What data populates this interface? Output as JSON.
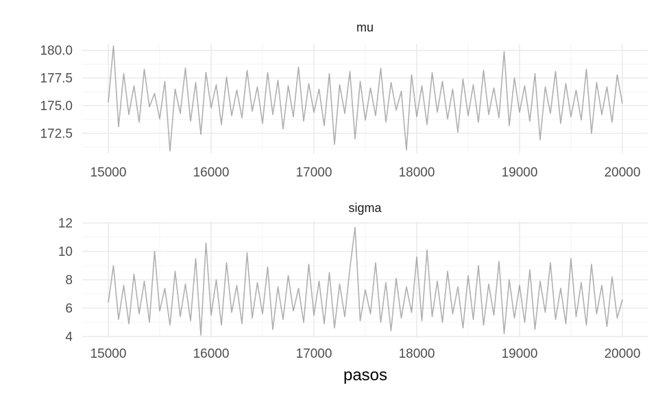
{
  "colors": {
    "background": "#ffffff",
    "trace": "#7f7f7f",
    "grid": "#ebebeb",
    "text": "#4d4d4d"
  },
  "chart_data": {
    "type": "line",
    "xlabel": "pasos",
    "grid": true,
    "legend": "none",
    "x_range": [
      15000,
      20000
    ],
    "x_ticks": [
      15000,
      16000,
      17000,
      18000,
      19000,
      20000
    ],
    "x_tick_labels": [
      "15000",
      "16000",
      "17000",
      "18000",
      "19000",
      "20000"
    ],
    "panels": [
      {
        "title": "mu",
        "ylim": [
          170.7,
          180.6
        ],
        "y_ticks": [
          172.5,
          175.0,
          177.5,
          180.0
        ],
        "y_tick_labels": [
          "172.5",
          "175.0",
          "177.5",
          "180.0"
        ],
        "series": {
          "x": [
            15000,
            15050,
            15100,
            15150,
            15200,
            15250,
            15300,
            15350,
            15400,
            15450,
            15500,
            15550,
            15600,
            15650,
            15700,
            15750,
            15800,
            15850,
            15900,
            15950,
            16000,
            16050,
            16100,
            16150,
            16200,
            16250,
            16300,
            16350,
            16400,
            16450,
            16500,
            16550,
            16600,
            16650,
            16700,
            16750,
            16800,
            16850,
            16900,
            16950,
            17000,
            17050,
            17100,
            17150,
            17200,
            17250,
            17300,
            17350,
            17400,
            17450,
            17500,
            17550,
            17600,
            17650,
            17700,
            17750,
            17800,
            17850,
            17900,
            17950,
            18000,
            18050,
            18100,
            18150,
            18200,
            18250,
            18300,
            18350,
            18400,
            18450,
            18500,
            18550,
            18600,
            18650,
            18700,
            18750,
            18800,
            18850,
            18900,
            18950,
            19000,
            19050,
            19100,
            19150,
            19200,
            19250,
            19300,
            19350,
            19400,
            19450,
            19500,
            19550,
            19600,
            19650,
            19700,
            19750,
            19800,
            19850,
            19900,
            19950,
            20000
          ],
          "y": [
            175.3,
            180.4,
            173.1,
            177.9,
            174.2,
            176.8,
            173.5,
            178.3,
            174.9,
            176.1,
            173.8,
            177.2,
            170.9,
            176.5,
            174.3,
            178.4,
            173.6,
            177.1,
            172.4,
            178.0,
            174.8,
            176.9,
            173.3,
            177.6,
            174.1,
            176.4,
            173.9,
            178.2,
            174.5,
            176.7,
            173.4,
            178.0,
            174.2,
            177.3,
            172.9,
            176.8,
            174.0,
            178.5,
            173.6,
            177.0,
            174.4,
            176.5,
            173.2,
            177.9,
            171.5,
            176.9,
            174.3,
            178.1,
            172.0,
            177.2,
            173.7,
            176.6,
            174.1,
            178.4,
            173.5,
            177.1,
            174.6,
            176.3,
            171.0,
            177.8,
            174.0,
            176.8,
            173.3,
            178.0,
            174.4,
            177.2,
            173.8,
            176.5,
            172.6,
            177.4,
            174.1,
            176.9,
            173.5,
            178.2,
            174.2,
            176.6,
            173.9,
            179.9,
            173.2,
            177.5,
            174.4,
            176.8,
            173.6,
            177.9,
            171.9,
            176.7,
            174.3,
            178.1,
            173.4,
            177.0,
            174.0,
            176.4,
            173.7,
            178.3,
            172.5,
            177.1,
            174.2,
            176.7,
            173.5,
            177.8,
            175.2
          ]
        }
      },
      {
        "title": "sigma",
        "ylim": [
          3.9,
          12.1
        ],
        "y_ticks": [
          4,
          6,
          8,
          10,
          12
        ],
        "y_tick_labels": [
          "4",
          "6",
          "8",
          "10",
          "12"
        ],
        "series": {
          "x": [
            15000,
            15050,
            15100,
            15150,
            15200,
            15250,
            15300,
            15350,
            15400,
            15450,
            15500,
            15550,
            15600,
            15650,
            15700,
            15750,
            15800,
            15850,
            15900,
            15950,
            16000,
            16050,
            16100,
            16150,
            16200,
            16250,
            16300,
            16350,
            16400,
            16450,
            16500,
            16550,
            16600,
            16650,
            16700,
            16750,
            16800,
            16850,
            16900,
            16950,
            17000,
            17050,
            17100,
            17150,
            17200,
            17250,
            17300,
            17350,
            17400,
            17450,
            17500,
            17550,
            17600,
            17650,
            17700,
            17750,
            17800,
            17850,
            17900,
            17950,
            18000,
            18050,
            18100,
            18150,
            18200,
            18250,
            18300,
            18350,
            18400,
            18450,
            18500,
            18550,
            18600,
            18650,
            18700,
            18750,
            18800,
            18850,
            18900,
            18950,
            19000,
            19050,
            19100,
            19150,
            19200,
            19250,
            19300,
            19350,
            19400,
            19450,
            19500,
            19550,
            19600,
            19650,
            19700,
            19750,
            19800,
            19850,
            19900,
            19950,
            20000
          ],
          "y": [
            6.4,
            9.0,
            5.2,
            7.6,
            4.9,
            8.4,
            5.6,
            7.9,
            5.0,
            10.0,
            5.8,
            7.4,
            4.8,
            8.6,
            5.4,
            7.7,
            5.1,
            9.5,
            4.1,
            10.6,
            5.5,
            8.0,
            4.8,
            9.2,
            5.7,
            7.6,
            4.9,
            9.9,
            5.3,
            7.8,
            5.6,
            8.9,
            4.5,
            7.5,
            5.2,
            8.3,
            5.8,
            7.4,
            5.0,
            9.1,
            5.5,
            7.9,
            4.9,
            8.5,
            4.6,
            7.7,
            5.4,
            8.8,
            11.7,
            5.1,
            7.3,
            5.6,
            9.2,
            5.0,
            7.8,
            4.4,
            8.1,
            5.3,
            7.5,
            5.7,
            9.6,
            5.1,
            10.1,
            5.4,
            7.9,
            5.0,
            8.6,
            5.6,
            7.5,
            4.6,
            8.3,
            5.2,
            9.0,
            4.8,
            7.7,
            5.5,
            9.3,
            4.2,
            8.0,
            5.3,
            7.6,
            5.0,
            8.7,
            4.5,
            7.9,
            5.7,
            9.2,
            5.2,
            7.4,
            4.9,
            9.5,
            5.4,
            7.8,
            4.8,
            9.1,
            5.6,
            7.6,
            4.7,
            8.2,
            5.3,
            6.6
          ]
        }
      }
    ]
  }
}
